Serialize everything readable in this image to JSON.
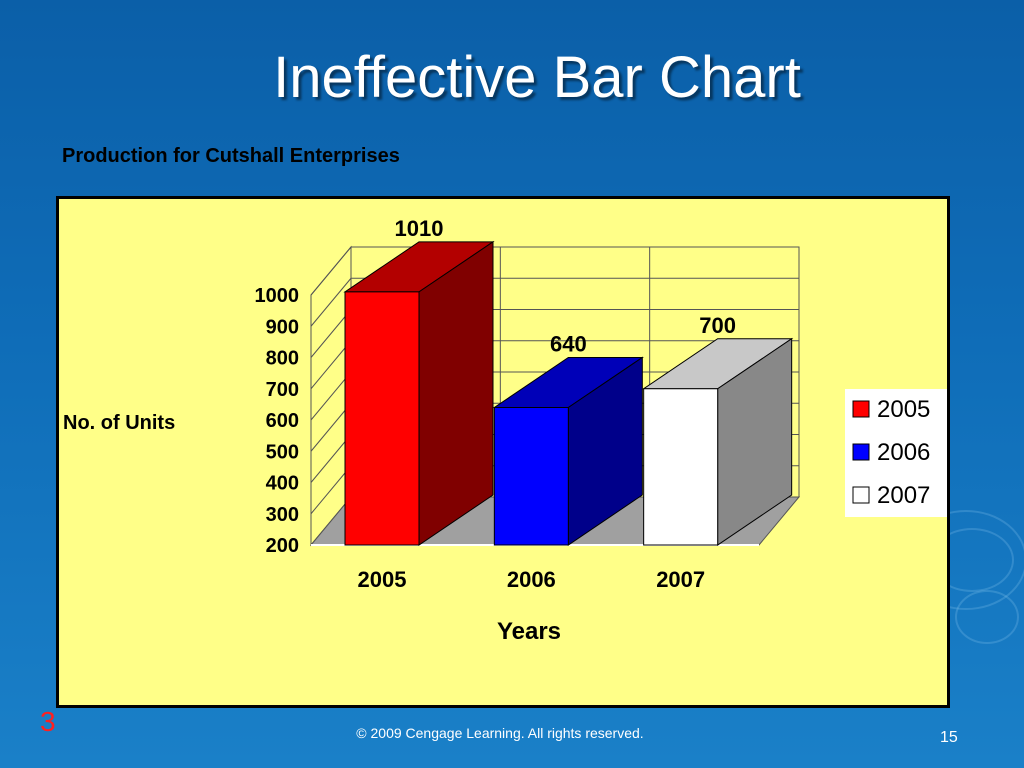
{
  "slide": {
    "title": "Ineffective Bar Chart",
    "corner_number": "3",
    "copyright": "© 2009 Cengage Learning. All rights reserved.",
    "page_number": "15"
  },
  "chart_data": {
    "type": "bar",
    "title": "Production for Cutshall Enterprises",
    "xlabel": "Years",
    "ylabel": "No. of Units",
    "categories": [
      "2005",
      "2006",
      "2007"
    ],
    "values": [
      1010,
      640,
      700
    ],
    "data_labels": [
      "1010",
      "640",
      "700"
    ],
    "yticks": [
      200,
      300,
      400,
      500,
      600,
      700,
      800,
      900,
      1000
    ],
    "ylim": [
      200,
      1000
    ],
    "three_d": true,
    "grid": true,
    "legend": {
      "placement": "right",
      "entries": [
        {
          "label": "2005",
          "color": "#ff0000"
        },
        {
          "label": "2006",
          "color": "#0000ff"
        },
        {
          "label": "2007",
          "color": "#ffffff"
        }
      ]
    },
    "colors": {
      "panel_background": "#ffff88",
      "floor": "#a0a0a0",
      "bars": [
        {
          "front": "#ff0000",
          "top": "#b30000",
          "side": "#800000"
        },
        {
          "front": "#0000ff",
          "top": "#0000b8",
          "side": "#00008a"
        },
        {
          "front": "#ffffff",
          "top": "#c8c8c8",
          "side": "#888888"
        }
      ]
    }
  }
}
